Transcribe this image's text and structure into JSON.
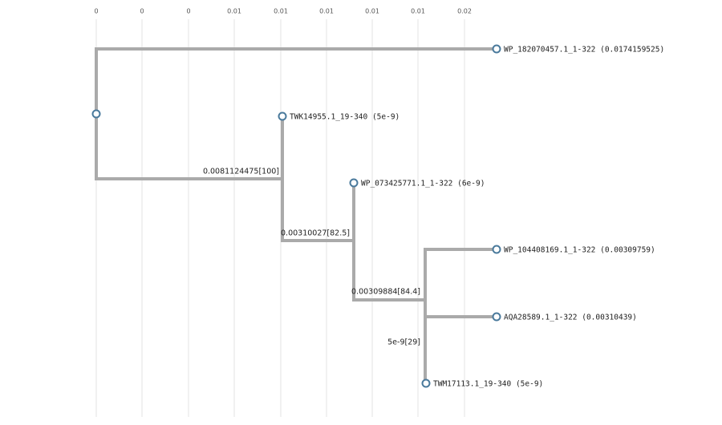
{
  "axis_labels": [
    "0",
    "0",
    "0",
    "0.01",
    "0.01",
    "0.01",
    "0.01",
    "0.01",
    "0.02"
  ],
  "leaves": [
    {
      "label": "WP_182070457.1_1-322 (0.0174159525)"
    },
    {
      "label": "TWK14955.1_19-340 (5e-9)"
    },
    {
      "label": "WP_073425771.1_1-322 (6e-9)"
    },
    {
      "label": "WP_104408169.1_1-322 (0.00309759)"
    },
    {
      "label": "AQA28589.1_1-322 (0.00310439)"
    },
    {
      "label": "TWM17113.1_19-340 (5e-9)"
    }
  ],
  "branch_labels": [
    "0.0081124475[100]",
    "0.00310027[82.5]",
    "0.00309884[84.4]",
    "5e-9[29]"
  ]
}
